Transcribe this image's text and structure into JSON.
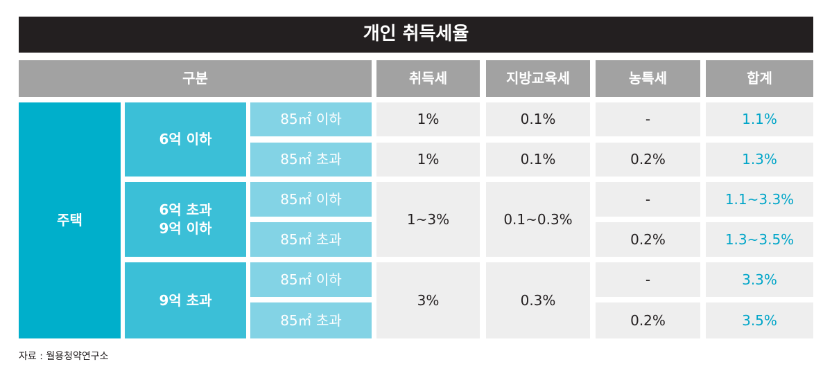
{
  "title": "개인 취득세율",
  "headers": {
    "category": "구분",
    "acquisition_tax": "취득세",
    "local_education_tax": "지방교육세",
    "rural_special_tax": "농특세",
    "total": "합계"
  },
  "housing": "주택",
  "groups": [
    {
      "label": "6억 이하",
      "acquisition_tax": "1%",
      "local_education_tax": "0.1%",
      "rows": [
        {
          "size": "85㎡ 이하",
          "rural_special_tax": "-",
          "total": "1.1%"
        },
        {
          "size": "85㎡ 초과",
          "rural_special_tax": "0.2%",
          "total": "1.3%"
        }
      ]
    },
    {
      "label": "6억 초과\n9억 이하",
      "acquisition_tax": "1~3%",
      "local_education_tax": "0.1~0.3%",
      "rows": [
        {
          "size": "85㎡ 이하",
          "rural_special_tax": "-",
          "total": "1.1~3.3%"
        },
        {
          "size": "85㎡ 초과",
          "rural_special_tax": "0.2%",
          "total": "1.3~3.5%"
        }
      ]
    },
    {
      "label": "9억 초과",
      "acquisition_tax": "3%",
      "local_education_tax": "0.3%",
      "rows": [
        {
          "size": "85㎡ 이하",
          "rural_special_tax": "-",
          "total": "3.3%"
        },
        {
          "size": "85㎡ 초과",
          "rural_special_tax": "0.2%",
          "total": "3.5%"
        }
      ]
    }
  ],
  "source": "자료 : 월용청약연구소",
  "colors": {
    "title_bg": "#231f20",
    "header_bg": "#a2a2a2",
    "housing_bg": "#00afcb",
    "price_bg": "#3bbfd7",
    "size_bg": "#83d3e5",
    "value_bg": "#eeeeee",
    "total_text": "#00a5c8"
  }
}
